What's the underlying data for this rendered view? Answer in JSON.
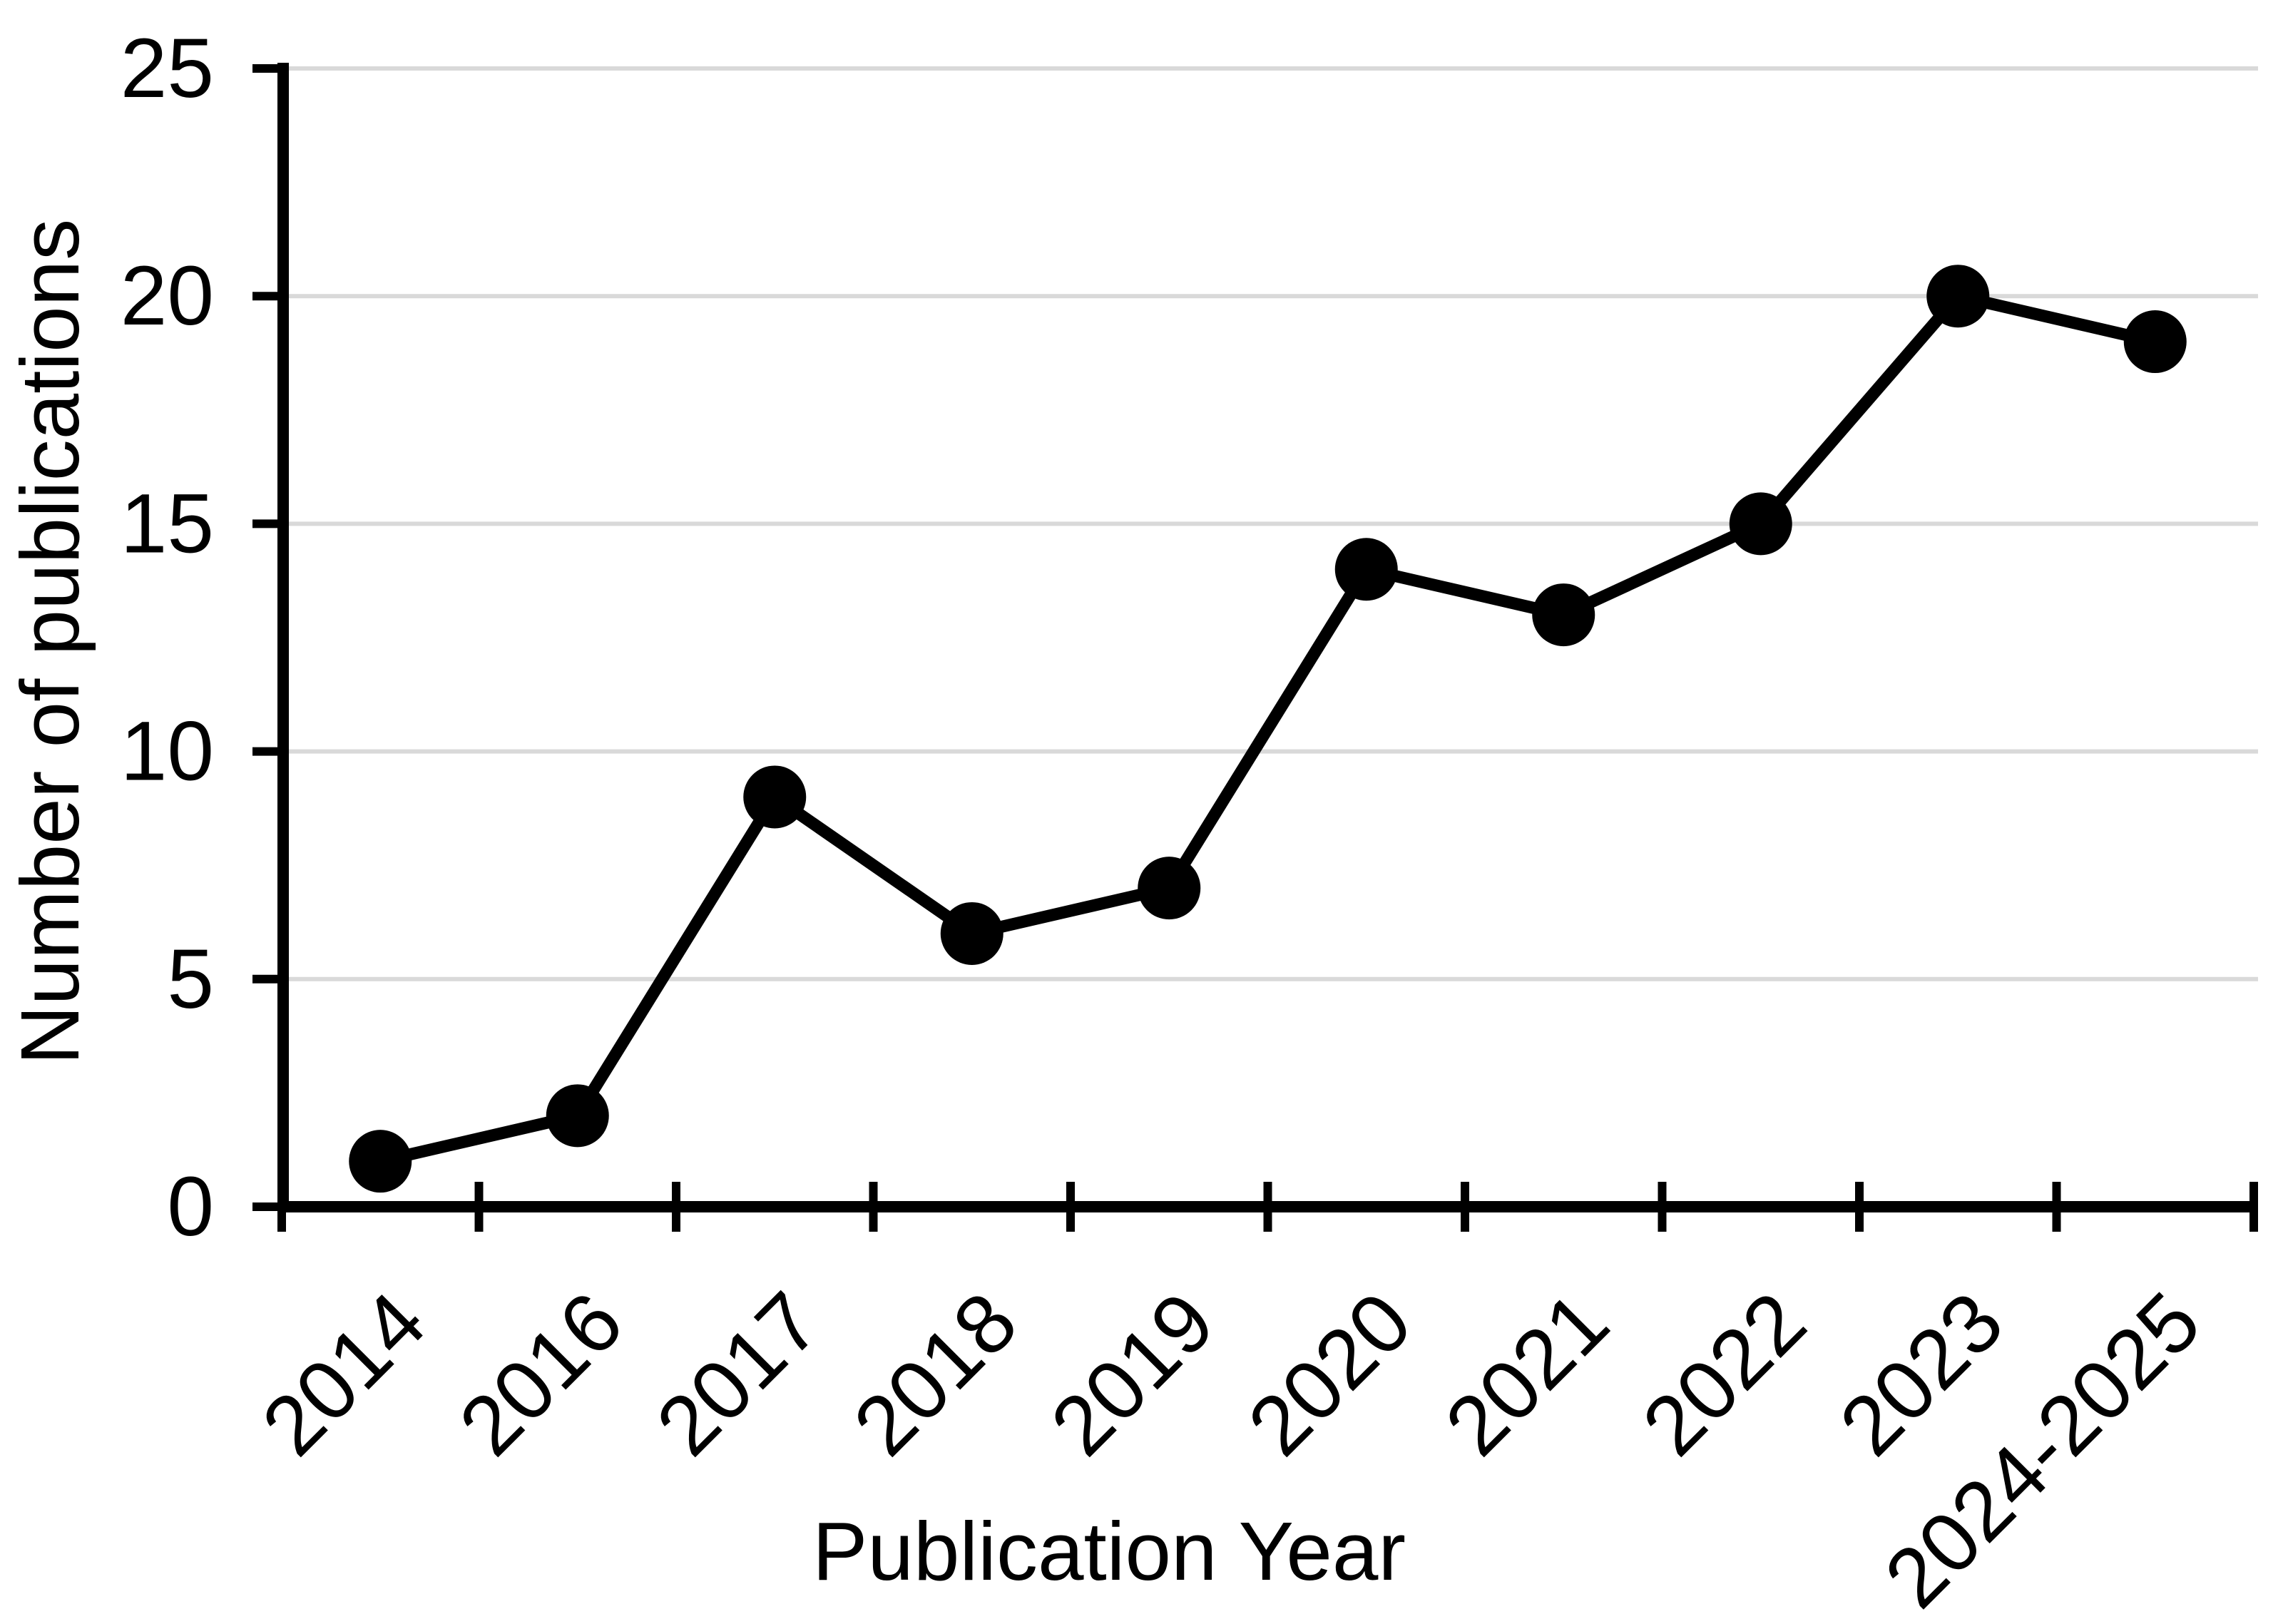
{
  "chart_data": {
    "type": "line",
    "title": "",
    "xlabel": "Publication Year",
    "ylabel": "Number of publications",
    "categories": [
      "2014",
      "2016",
      "2017",
      "2018",
      "2019",
      "2020",
      "2021",
      "2022",
      "2023",
      "2024-2025"
    ],
    "values": [
      1,
      2,
      9,
      6,
      7,
      14,
      13,
      15,
      20,
      19
    ],
    "ylim": [
      0,
      25
    ],
    "ytick_interval": 5,
    "ytick_labels": [
      "0",
      "5",
      "10",
      "15",
      "20",
      "25"
    ],
    "grid": "horizontal",
    "legend_position": "none",
    "series_name": "Number of publications",
    "marker": "filled-circle",
    "colors": {
      "series": "#000000",
      "marker": "#000000",
      "axis": "#000000",
      "gridline": "#d9d9d9",
      "text": "#000000",
      "background": "#ffffff"
    }
  }
}
